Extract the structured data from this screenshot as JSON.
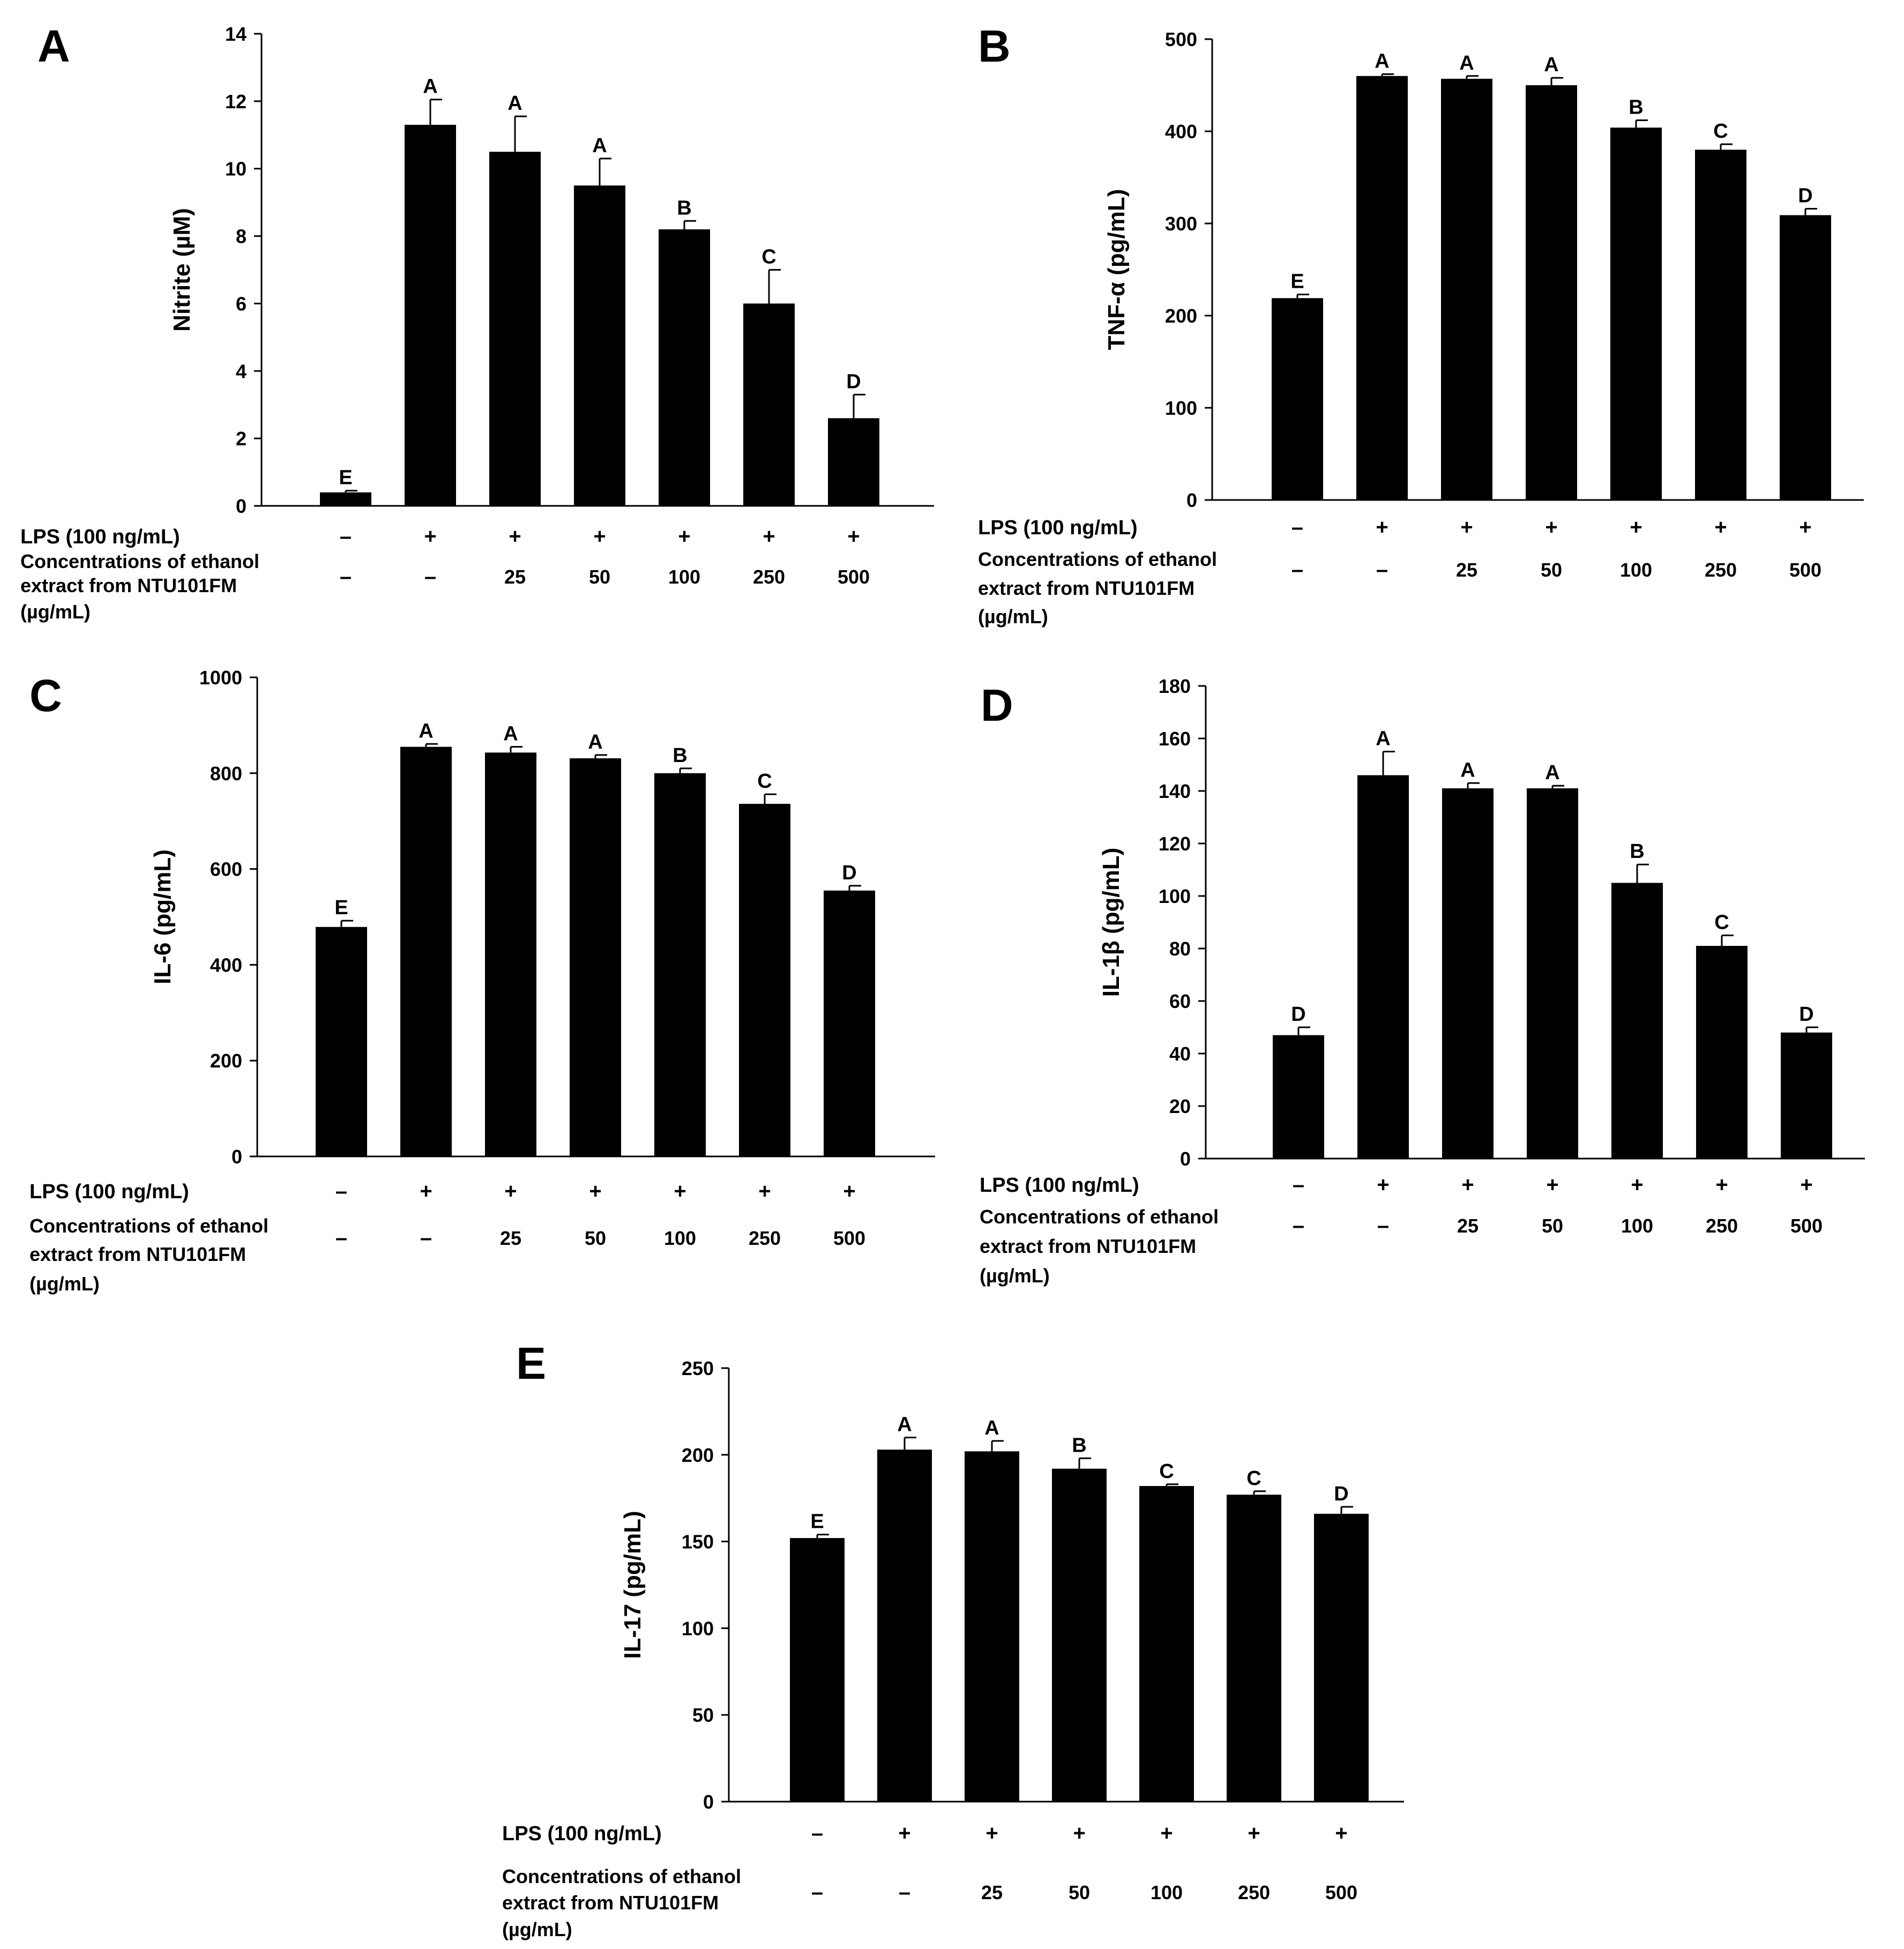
{
  "figure": {
    "row1_label": "LPS (100 ng/mL)",
    "row2_label": [
      "Concentrations of ethanol",
      "extract   from   NTU101FM",
      "(µg/mL)"
    ],
    "lps_row": [
      "–",
      "+",
      "+",
      "+",
      "+",
      "+",
      "+"
    ],
    "conc_row": [
      "–",
      "–",
      "25",
      "50",
      "100",
      "250",
      "500"
    ]
  },
  "chart_data": [
    {
      "panel": "A",
      "type": "bar",
      "ylabel": "Nitrite (µM)",
      "ylim": [
        0,
        14
      ],
      "yticks": [
        0,
        2,
        4,
        6,
        8,
        10,
        12,
        14
      ],
      "values": [
        0.4,
        11.3,
        10.5,
        9.5,
        8.2,
        6.0,
        2.6
      ],
      "errors": [
        0.05,
        0.75,
        1.05,
        0.8,
        0.25,
        1.0,
        0.7
      ],
      "sig": [
        "E",
        "A",
        "A",
        "A",
        "B",
        "C",
        "D"
      ]
    },
    {
      "panel": "B",
      "type": "bar",
      "ylabel": "TNF-α (pg/mL)",
      "ylim": [
        0,
        500
      ],
      "yticks": [
        0,
        100,
        200,
        300,
        400,
        500
      ],
      "values": [
        219,
        460,
        457,
        450,
        404,
        380,
        309
      ],
      "errors": [
        4,
        2,
        3,
        8,
        8,
        6,
        7
      ],
      "sig": [
        "E",
        "A",
        "A",
        "A",
        "B",
        "C",
        "D"
      ]
    },
    {
      "panel": "C",
      "type": "bar",
      "ylabel": "IL-6 (pg/mL)",
      "ylim": [
        0,
        1000
      ],
      "yticks": [
        0,
        200,
        400,
        600,
        800,
        1000
      ],
      "values": [
        479,
        855,
        843,
        831,
        800,
        736,
        555
      ],
      "errors": [
        13,
        6,
        12,
        7,
        10,
        20,
        10
      ],
      "sig": [
        "E",
        "A",
        "A",
        "A",
        "B",
        "C",
        "D"
      ]
    },
    {
      "panel": "D",
      "type": "bar",
      "ylabel": "IL-1β (pg/mL)",
      "ylim": [
        0,
        180
      ],
      "yticks": [
        0,
        20,
        40,
        60,
        80,
        100,
        120,
        140,
        160,
        180
      ],
      "values": [
        47,
        146,
        141,
        141,
        105,
        81,
        48
      ],
      "errors": [
        3,
        9,
        2,
        1,
        7,
        4,
        2
      ],
      "sig": [
        "D",
        "A",
        "A",
        "A",
        "B",
        "C",
        "D"
      ]
    },
    {
      "panel": "E",
      "type": "bar",
      "ylabel": "IL-17 (pg/mL)",
      "ylim": [
        0,
        250
      ],
      "yticks": [
        0,
        50,
        100,
        150,
        200,
        250
      ],
      "values": [
        152,
        203,
        202,
        192,
        182,
        177,
        166
      ],
      "errors": [
        2,
        7,
        6,
        6,
        1,
        2,
        4
      ],
      "sig": [
        "E",
        "A",
        "A",
        "B",
        "C",
        "C",
        "D"
      ]
    }
  ]
}
